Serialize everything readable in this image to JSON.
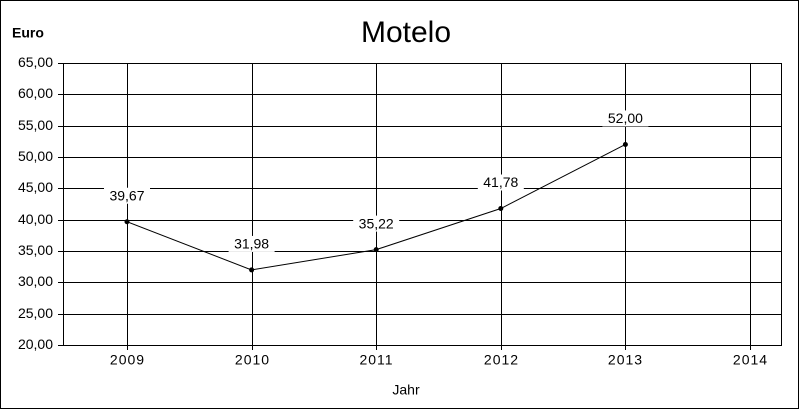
{
  "chart_data": {
    "type": "line",
    "title": "Motelo",
    "y_label": "Euro",
    "x_label": "Jahr",
    "categories": [
      "2009",
      "2010",
      "2011",
      "2012",
      "2013",
      "2014"
    ],
    "values": [
      39.67,
      31.98,
      35.22,
      41.78,
      52.0,
      null
    ],
    "value_labels": [
      "39,67",
      "31,98",
      "35,22",
      "41,78",
      "52,00",
      null
    ],
    "color": "#000000",
    "ylim": [
      20,
      65
    ],
    "yticks": [
      {
        "value": 20,
        "label": "20,00"
      },
      {
        "value": 25,
        "label": "25,00"
      },
      {
        "value": 30,
        "label": "30,00"
      },
      {
        "value": 35,
        "label": "35,00"
      },
      {
        "value": 40,
        "label": "40,00"
      },
      {
        "value": 45,
        "label": "45,00"
      },
      {
        "value": 50,
        "label": "50,00"
      },
      {
        "value": 55,
        "label": "55,00"
      },
      {
        "value": 60,
        "label": "60,00"
      },
      {
        "value": 65,
        "label": "65,00"
      }
    ],
    "grid": true
  }
}
